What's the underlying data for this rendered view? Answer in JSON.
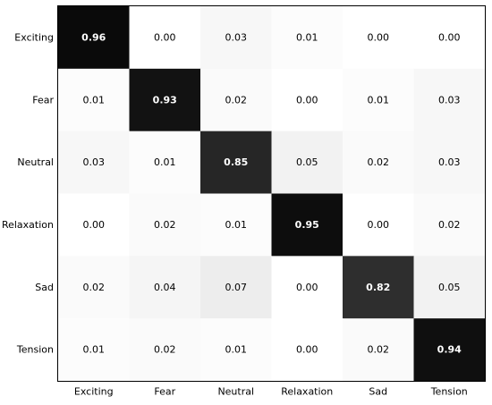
{
  "chart_data": {
    "type": "heatmap",
    "title": "",
    "xlabel": "",
    "ylabel": "",
    "x_categories": [
      "Exciting",
      "Fear",
      "Neutral",
      "Relaxation",
      "Sad",
      "Tension"
    ],
    "y_categories": [
      "Exciting",
      "Fear",
      "Neutral",
      "Relaxation",
      "Sad",
      "Tension"
    ],
    "values": [
      [
        0.96,
        0.0,
        0.03,
        0.01,
        0.0,
        0.0
      ],
      [
        0.01,
        0.93,
        0.02,
        0.0,
        0.01,
        0.03
      ],
      [
        0.03,
        0.01,
        0.85,
        0.05,
        0.02,
        0.03
      ],
      [
        0.0,
        0.02,
        0.01,
        0.95,
        0.0,
        0.02
      ],
      [
        0.02,
        0.04,
        0.07,
        0.0,
        0.82,
        0.05
      ],
      [
        0.01,
        0.02,
        0.01,
        0.0,
        0.02,
        0.94
      ]
    ],
    "value_format": "0.00",
    "color_scale": {
      "min": 0,
      "max": 1,
      "low_color": "#ffffff",
      "high_color": "#000000"
    },
    "grid": false,
    "legend": "none"
  }
}
